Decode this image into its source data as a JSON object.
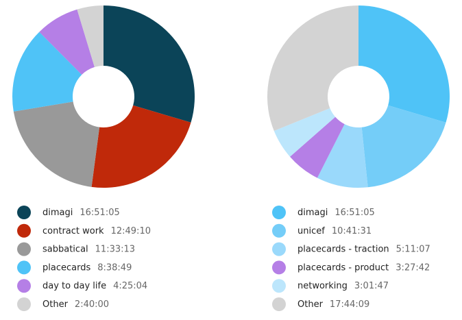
{
  "chart_data": [
    {
      "type": "donut",
      "categories": [
        "dimagi",
        "contract work",
        "sabbatical",
        "placecards",
        "day to day life",
        "Other"
      ],
      "values": [
        60665,
        46150,
        41593,
        31129,
        15904,
        9600
      ],
      "value_labels": [
        "16:51:05",
        "12:49:10",
        "11:33:13",
        "8:38:49",
        "4:25:04",
        "2:40:00"
      ],
      "colors": [
        "#0b4458",
        "#c0290a",
        "#999999",
        "#4fc3f7",
        "#b57fe6",
        "#d3d3d3"
      ]
    },
    {
      "type": "donut",
      "categories": [
        "dimagi",
        "unicef",
        "placecards - traction",
        "placecards - product",
        "networking",
        "Other"
      ],
      "values": [
        60665,
        38491,
        18667,
        12462,
        10907,
        63849
      ],
      "value_labels": [
        "16:51:05",
        "10:41:31",
        "5:11:07",
        "3:27:42",
        "3:01:47",
        "17:44:09"
      ],
      "colors": [
        "#4fc3f7",
        "#74cdf8",
        "#9ad9fb",
        "#b57fe6",
        "#bce6fc",
        "#d3d3d3"
      ]
    }
  ]
}
